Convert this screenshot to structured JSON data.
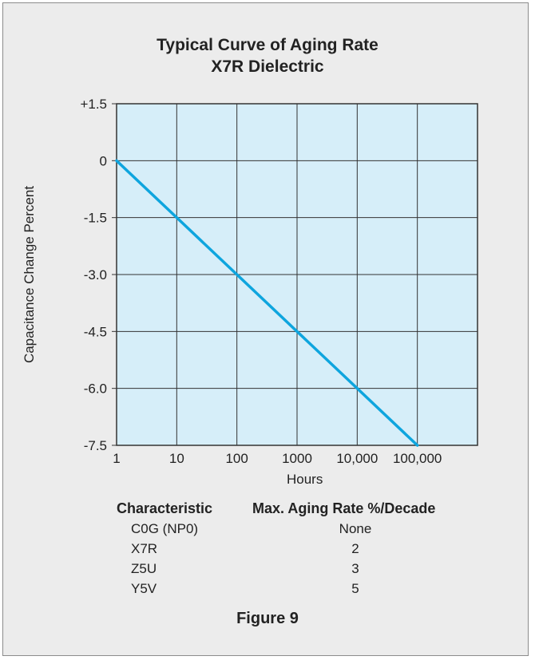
{
  "title": [
    "Typical Curve of Aging Rate",
    "X7R Dielectric"
  ],
  "colors": {
    "plot_background": "#d6eef9",
    "line": "#0ea5de",
    "grid": "#333333",
    "panel": "#ececec"
  },
  "chart_data": {
    "type": "line",
    "title": "Typical Curve of Aging Rate X7R Dielectric",
    "xlabel": "Hours",
    "ylabel": "Capacitance Change Percent",
    "x_scale": "log",
    "xlim": [
      1,
      1000000
    ],
    "ylim": [
      -7.5,
      1.5
    ],
    "x_ticks": [
      1,
      10,
      100,
      1000,
      10000,
      100000
    ],
    "x_tick_labels": [
      "1",
      "10",
      "100",
      "1000",
      "10,000",
      "100,000"
    ],
    "y_ticks": [
      1.5,
      0,
      -1.5,
      -3.0,
      -4.5,
      -6.0,
      -7.5
    ],
    "y_tick_labels": [
      "+1.5",
      "0",
      "-1.5",
      "-3.0",
      "-4.5",
      "-6.0",
      "-7.5"
    ],
    "grid": true,
    "series": [
      {
        "x": [
          1,
          10,
          100,
          1000,
          10000,
          100000
        ],
        "y": [
          0,
          -1.5,
          -3.0,
          -4.5,
          -6.0,
          -7.5
        ]
      }
    ]
  },
  "table": {
    "headers": [
      "Characteristic",
      "Max. Aging Rate %/Decade"
    ],
    "rows": [
      [
        "C0G (NP0)",
        "None"
      ],
      [
        "X7R",
        "2"
      ],
      [
        "Z5U",
        "3"
      ],
      [
        "Y5V",
        "5"
      ]
    ]
  },
  "caption": "Figure 9"
}
